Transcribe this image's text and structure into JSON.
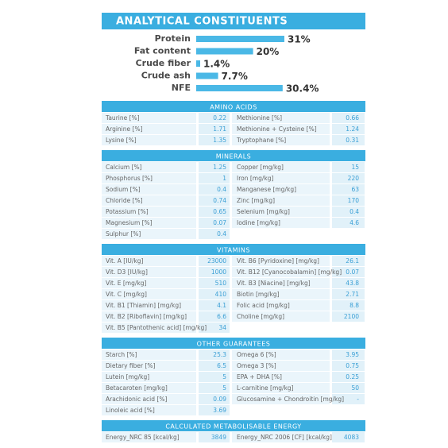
{
  "chart_data": {
    "type": "bar",
    "title": "ANALYTICAL CONSTITUENTS",
    "categories": [
      "Protein",
      "Fat content",
      "Crude fiber",
      "Crude ash",
      "NFE"
    ],
    "values": [
      31,
      20,
      1.4,
      7.7,
      30.4
    ],
    "value_labels": [
      "31%",
      "20%",
      "1.4%",
      "7.7%",
      "30.4%"
    ],
    "color": "#4ab8e6"
  },
  "sections": [
    {
      "title": "AMINO ACIDS",
      "rows": [
        [
          "Taurine [%]",
          "0.22",
          "Methionine [%]",
          "0.66"
        ],
        [
          "Arginine [%]",
          "1.71",
          "Methionine + Cysteine [%]",
          "1.24"
        ],
        [
          "Lysine [%]",
          "1.35",
          "Tryptophane [%]",
          "0.31"
        ]
      ]
    },
    {
      "title": "MINERALS",
      "rows": [
        [
          "Calcium [%]",
          "1.25",
          "Copper [mg/kg]",
          "15"
        ],
        [
          "Phosphorus [%]",
          "1",
          "Iron [mg/kg]",
          "220"
        ],
        [
          "Sodium [%]",
          "0.4",
          "Manganese [mg/kg]",
          "63"
        ],
        [
          "Chloride [%]",
          "0.74",
          "Zinc [mg/kg]",
          "170"
        ],
        [
          "Potassium [%]",
          "0.65",
          "Selenium [mg/kg]",
          "0.4"
        ],
        [
          "Magnesium [%]",
          "0.07",
          "Iodine [mg/kg]",
          "4.6"
        ],
        [
          "Sulphur [%]",
          "0.4"
        ]
      ]
    },
    {
      "title": "VITAMINS",
      "rows": [
        [
          "Vit. A [IU/kg]",
          "23000",
          "Vit. B6 [Pyridoxine] [mg/kg]",
          "26.1"
        ],
        [
          "Vit. D3 [IU/kg]",
          "1000",
          "Vit. B12 [Cyanocobalamin] [mg/kg]",
          "0.07"
        ],
        [
          "Vit. E [mg/kg]",
          "510",
          "Vit. B3 [Niacine] [mg/kg]",
          "43.8"
        ],
        [
          "Vit. C [mg/kg]",
          "410",
          "Biotin [mg/kg]",
          "2.71"
        ],
        [
          "Vit. B1 [Thiamin] [mg/kg]",
          "4.1",
          "Folic acid [mg/kg]",
          "8.8"
        ],
        [
          "Vit. B2 [Riboflavin] [mg/kg]",
          "6.6",
          "Choline [mg/kg]",
          "2100"
        ],
        [
          "Vit. B5 [Pantothenic acid] [mg/kg]",
          "34"
        ]
      ]
    },
    {
      "title": "OTHER GUARANTEES",
      "rows": [
        [
          "Starch [%]",
          "25.3",
          "Omega 6 [%]",
          "3.95"
        ],
        [
          "Dietary fiber [%]",
          "6.5",
          "Omega 3 [%]",
          "0.75"
        ],
        [
          "Lutein [mg/kg]",
          "5",
          "EPA + DHA [%]",
          "0.25"
        ],
        [
          "Betacaroten [mg/kg]",
          "5",
          "L-carnitine [mg/kg]",
          "50"
        ],
        [
          "Arachidonic acid [%]",
          "0.09",
          "Glucosamine + Chondroitin [mg/kg]",
          "-"
        ],
        [
          "Linoleic acid [%]",
          "3.69"
        ]
      ]
    },
    {
      "title": "CALCULATED METABOLISABLE ENERGY",
      "rows": [
        [
          "Energy_NRC 85 [kcal/kg]",
          "3849",
          "Energy_NRC 2006 [CF] [kcal/kg]",
          "4083"
        ]
      ]
    }
  ]
}
